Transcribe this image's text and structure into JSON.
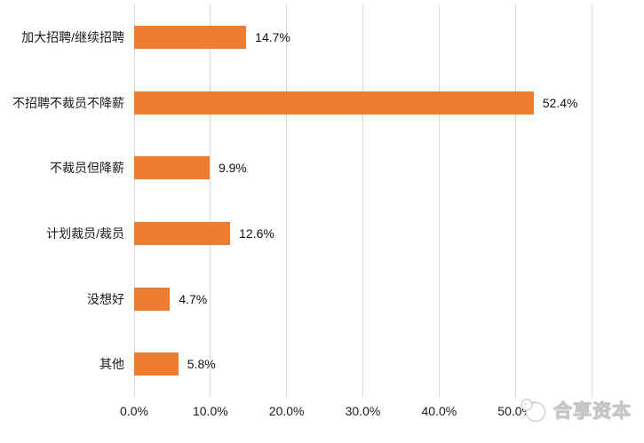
{
  "chart_data": {
    "type": "bar",
    "orientation": "horizontal",
    "title": "",
    "xlabel": "",
    "ylabel": "",
    "categories": [
      "加大招聘/继续招聘",
      "不招聘不裁员不降薪",
      "不裁员但降薪",
      "计划裁员/裁员",
      "没想好",
      "其他"
    ],
    "values": [
      14.7,
      52.4,
      9.9,
      12.6,
      4.7,
      5.8
    ],
    "value_labels": [
      "14.7%",
      "52.4%",
      "9.9%",
      "12.6%",
      "4.7%",
      "5.8%"
    ],
    "xlim": [
      0,
      60
    ],
    "x_tick_values": [
      0,
      10,
      20,
      30,
      40,
      50
    ],
    "x_ticks": [
      "0.0%",
      "10.0%",
      "20.0%",
      "30.0%",
      "40.0%",
      "50.0%"
    ],
    "grid": true,
    "legend": "none",
    "bar_color": "#ED7D31",
    "gridline_color": "#D9D9D9"
  },
  "watermark": {
    "text": "合享资本"
  }
}
